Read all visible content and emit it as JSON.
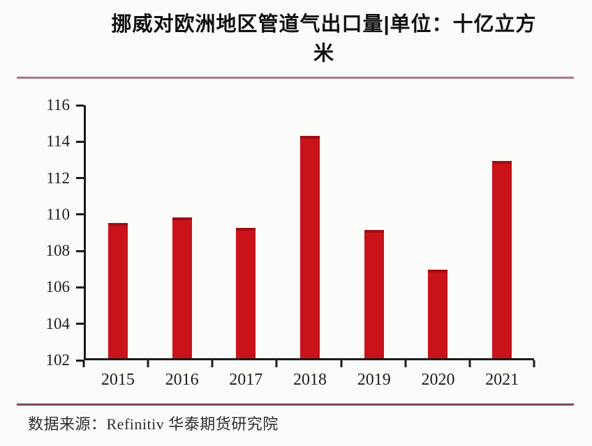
{
  "header": {
    "title_lines": [
      "挪威对欧洲地区管道气出口量|单位：十亿立方",
      "米"
    ]
  },
  "chart_data": {
    "type": "bar",
    "title": "挪威对欧洲地区管道气出口量|单位：十亿立方米",
    "unit": "十亿立方米",
    "categories": [
      "2015",
      "2016",
      "2017",
      "2018",
      "2019",
      "2020",
      "2021"
    ],
    "values": [
      109.5,
      109.8,
      109.2,
      114.3,
      109.1,
      106.9,
      112.9
    ],
    "ylim": [
      102,
      116
    ],
    "yticks": [
      102,
      104,
      106,
      108,
      110,
      112,
      114,
      116
    ],
    "xlabel": "",
    "ylabel": "",
    "grid": false,
    "legend_position": "none",
    "bar_color": "#c9121a"
  },
  "footer": {
    "source": "数据来源：Refinitiv 华泰期货研究院"
  },
  "colors": {
    "bar": "#c9121a",
    "bar_cap": "#a00d12",
    "axis": "#1b1b1b",
    "top_rule": "#b27380",
    "bottom_rule": "#7d4a4c",
    "text": "#1c1c1c",
    "background": "#fbfbfa"
  }
}
